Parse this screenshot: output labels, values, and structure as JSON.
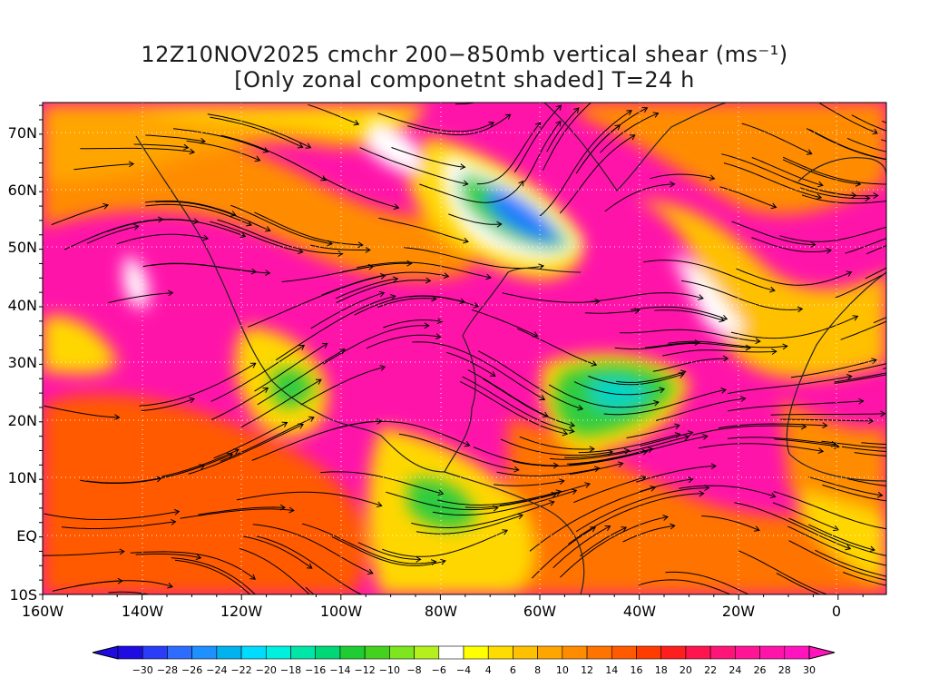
{
  "title_line1": "12Z10NOV2025 cmchr 200−850mb vertical shear (ms⁻¹)",
  "title_line2": "[Only zonal componetnt shaded] T=24 h",
  "lat_labels": [
    "70N",
    "60N",
    "50N",
    "40N",
    "30N",
    "20N",
    "10N",
    "EQ",
    "10S"
  ],
  "lon_labels": [
    "160W",
    "140W",
    "120W",
    "100W",
    "80W",
    "60W",
    "40W",
    "20W",
    "0"
  ],
  "colorbar": {
    "labels": [
      "−30",
      "−28",
      "−26",
      "−24",
      "−22",
      "−20",
      "−18",
      "−16",
      "−14",
      "−12",
      "−10",
      "−8",
      "−6",
      "−4",
      "4",
      "6",
      "8",
      "10",
      "12",
      "14",
      "16",
      "18",
      "20",
      "22",
      "24",
      "26",
      "28",
      "30"
    ],
    "colors": [
      "#1e0ce0",
      "#2a3cf5",
      "#2d6cff",
      "#1e90ff",
      "#00b2ee",
      "#00dcff",
      "#00f0e0",
      "#00e6a8",
      "#00d878",
      "#1ecd32",
      "#45d21e",
      "#7de61e",
      "#b4f01e",
      "#ffffff",
      "#ffff00",
      "#ffdc00",
      "#ffc000",
      "#ffa500",
      "#ff8c00",
      "#ff7300",
      "#ff5a00",
      "#ff3c00",
      "#ff1e1e",
      "#ff1450",
      "#ff1478",
      "#ff1496",
      "#ff14aa",
      "#ff14be"
    ]
  },
  "field_colors": {
    "strong_positive": "#ff14aa",
    "positive": "#ff3c3c",
    "moderate": "#ff8c00",
    "weak": "#ffd700",
    "neutral": "#ffffff",
    "negative": "#2ecc40",
    "strong_negative": "#1e5cff"
  }
}
